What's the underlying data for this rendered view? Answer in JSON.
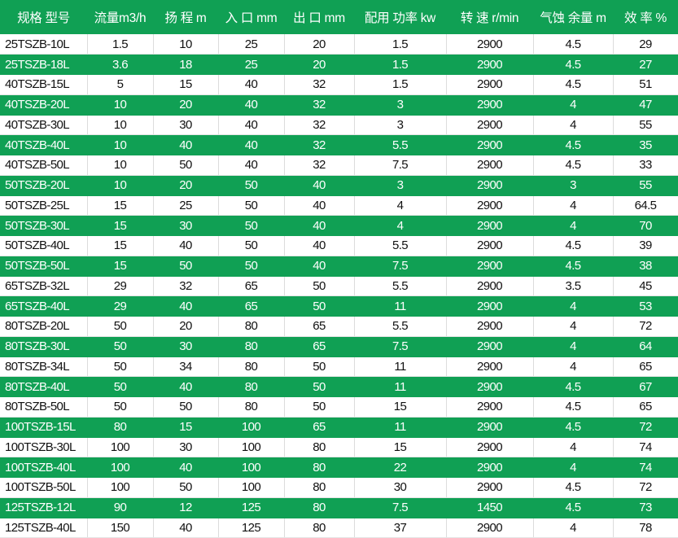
{
  "colors": {
    "row_stripe": "#10a054",
    "header_bg": "#10a054"
  },
  "headers": [
    "规格 型号",
    "流量m3/h",
    "扬 程 m",
    "入 口 mm",
    "出 口 mm",
    "配用 功率 kw",
    "转 速 r/min",
    "气蚀 余量 m",
    "效 率 %"
  ],
  "rows": [
    [
      "25TSZB-10L",
      "1.5",
      "10",
      "25",
      "20",
      "1.5",
      "2900",
      "4.5",
      "29"
    ],
    [
      "25TSZB-18L",
      "3.6",
      "18",
      "25",
      "20",
      "1.5",
      "2900",
      "4.5",
      "27"
    ],
    [
      "40TSZB-15L",
      "5",
      "15",
      "40",
      "32",
      "1.5",
      "2900",
      "4.5",
      "51"
    ],
    [
      "40TSZB-20L",
      "10",
      "20",
      "40",
      "32",
      "3",
      "2900",
      "4",
      "47"
    ],
    [
      "40TSZB-30L",
      "10",
      "30",
      "40",
      "32",
      "3",
      "2900",
      "4",
      "55"
    ],
    [
      "40TSZB-40L",
      "10",
      "40",
      "40",
      "32",
      "5.5",
      "2900",
      "4.5",
      "35"
    ],
    [
      "40TSZB-50L",
      "10",
      "50",
      "40",
      "32",
      "7.5",
      "2900",
      "4.5",
      "33"
    ],
    [
      "50TSZB-20L",
      "10",
      "20",
      "50",
      "40",
      "3",
      "2900",
      "3",
      "55"
    ],
    [
      "50TSZB-25L",
      "15",
      "25",
      "50",
      "40",
      "4",
      "2900",
      "4",
      "64.5"
    ],
    [
      "50TSZB-30L",
      "15",
      "30",
      "50",
      "40",
      "4",
      "2900",
      "4",
      "70"
    ],
    [
      "50TSZB-40L",
      "15",
      "40",
      "50",
      "40",
      "5.5",
      "2900",
      "4.5",
      "39"
    ],
    [
      "50TSZB-50L",
      "15",
      "50",
      "50",
      "40",
      "7.5",
      "2900",
      "4.5",
      "38"
    ],
    [
      "65TSZB-32L",
      "29",
      "32",
      "65",
      "50",
      "5.5",
      "2900",
      "3.5",
      "45"
    ],
    [
      "65TSZB-40L",
      "29",
      "40",
      "65",
      "50",
      "11",
      "2900",
      "4",
      "53"
    ],
    [
      "80TSZB-20L",
      "50",
      "20",
      "80",
      "65",
      "5.5",
      "2900",
      "4",
      "72"
    ],
    [
      "80TSZB-30L",
      "50",
      "30",
      "80",
      "65",
      "7.5",
      "2900",
      "4",
      "64"
    ],
    [
      "80TSZB-34L",
      "50",
      "34",
      "80",
      "50",
      "11",
      "2900",
      "4",
      "65"
    ],
    [
      "80TSZB-40L",
      "50",
      "40",
      "80",
      "50",
      "11",
      "2900",
      "4.5",
      "67"
    ],
    [
      "80TSZB-50L",
      "50",
      "50",
      "80",
      "50",
      "15",
      "2900",
      "4.5",
      "65"
    ],
    [
      "100TSZB-15L",
      "80",
      "15",
      "100",
      "65",
      "11",
      "2900",
      "4.5",
      "72"
    ],
    [
      "100TSZB-30L",
      "100",
      "30",
      "100",
      "80",
      "15",
      "2900",
      "4",
      "74"
    ],
    [
      "100TSZB-40L",
      "100",
      "40",
      "100",
      "80",
      "22",
      "2900",
      "4",
      "74"
    ],
    [
      "100TSZB-50L",
      "100",
      "50",
      "100",
      "80",
      "30",
      "2900",
      "4.5",
      "72"
    ],
    [
      "125TSZB-12L",
      "90",
      "12",
      "125",
      "80",
      "7.5",
      "1450",
      "4.5",
      "73"
    ],
    [
      "125TSZB-40L",
      "150",
      "40",
      "125",
      "80",
      "37",
      "2900",
      "4",
      "78"
    ]
  ]
}
